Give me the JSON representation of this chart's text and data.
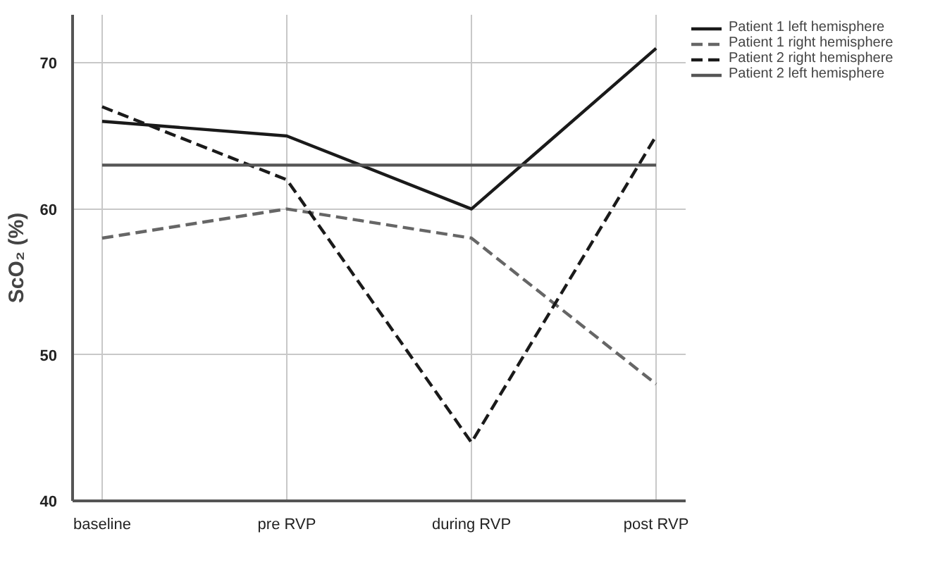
{
  "chart_data": {
    "type": "line",
    "ylabel": "ScO₂ (%)",
    "categories": [
      "baseline",
      "pre RVP",
      "during RVP",
      "post RVP"
    ],
    "series": [
      {
        "name": "Patient 1 left hemisphere",
        "color": "#1a1a1a",
        "line_style": "solid",
        "values": [
          66,
          65,
          60,
          71
        ]
      },
      {
        "name": "Patient 1 right hemisphere",
        "color": "#666666",
        "line_style": "dashed",
        "values": [
          58,
          60,
          58,
          48
        ]
      },
      {
        "name": "Patient 2 right hemisphere",
        "color": "#1a1a1a",
        "line_style": "dashed",
        "values": [
          67,
          62,
          44,
          65
        ]
      },
      {
        "name": "Patient 2 left hemisphere",
        "color": "#555555",
        "line_style": "solid",
        "values": [
          63,
          63,
          63,
          63
        ]
      }
    ],
    "ylim": [
      40,
      73.3
    ],
    "yticks": [
      40,
      50,
      60,
      70
    ],
    "grid": true,
    "legend": "top right"
  }
}
